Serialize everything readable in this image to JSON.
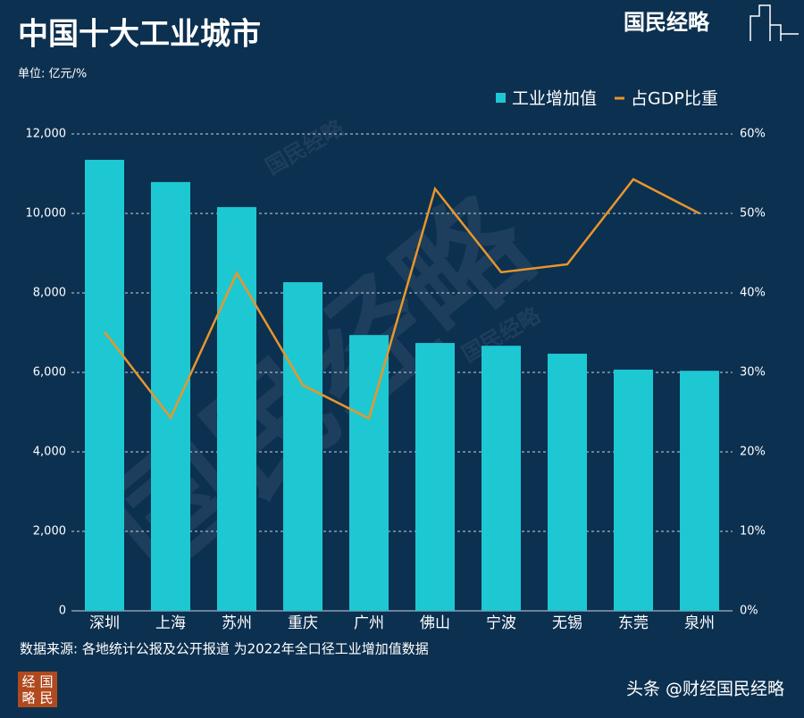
{
  "chart_data": {
    "type": "combo",
    "title": "中国十大工业城市",
    "unit": "单位: 亿元/%",
    "source": "数据来源: 各地统计公报及公开报道 为2022年全口径工业增加值数据",
    "brand": "国民经略",
    "stamp": [
      "经",
      "国",
      "略",
      "民"
    ],
    "credit": "头条 @财经国民经略",
    "categories": [
      "深圳",
      "上海",
      "苏州",
      "重庆",
      "广州",
      "佛山",
      "宁波",
      "无锡",
      "东莞",
      "泉州"
    ],
    "series": [
      {
        "name": "工业增加值",
        "type": "bar",
        "color": "#1dc8d2",
        "axis": "y",
        "values": [
          11350,
          10790,
          10160,
          8270,
          6940,
          6740,
          6670,
          6470,
          6070,
          6040
        ]
      },
      {
        "name": "占GDP比重",
        "type": "line",
        "color": "#e8962a",
        "axis": "y2",
        "values": [
          35.1,
          24.3,
          42.5,
          28.4,
          24.2,
          53.1,
          42.6,
          43.6,
          54.3,
          50
        ]
      }
    ],
    "ylim": [
      0,
      12000
    ],
    "yticks": [
      0,
      {
        "value": 2000,
        "label": "2,000"
      },
      {
        "value": 4000,
        "label": "4,000"
      },
      {
        "value": 6000,
        "label": "6,000"
      },
      {
        "value": 8000,
        "label": "8,000"
      },
      {
        "value": 10000,
        "label": "10,000"
      },
      {
        "value": 12000,
        "label": "12,000"
      }
    ],
    "y2lim": [
      0,
      60
    ],
    "y2ticks": [
      {
        "value": 0,
        "label": "0%"
      },
      {
        "value": 10,
        "label": "10%"
      },
      {
        "value": 20,
        "label": "20%"
      },
      {
        "value": 30,
        "label": "30%"
      },
      {
        "value": 40,
        "label": "40%"
      },
      {
        "value": 50,
        "label": "50%"
      },
      {
        "value": 60,
        "label": "60%"
      }
    ],
    "grid": true
  }
}
